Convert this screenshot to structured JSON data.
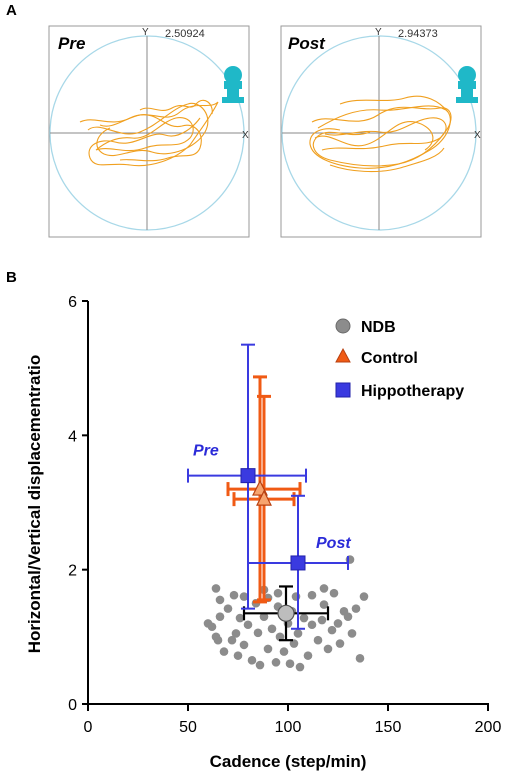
{
  "panel_a": {
    "letter": "A",
    "pre": {
      "label": "Pre",
      "y_axis": "Y",
      "x_axis": "X",
      "value": "2.50924"
    },
    "post": {
      "label": "Post",
      "y_axis": "Y",
      "x_axis": "X",
      "value": "2.94373"
    },
    "trace_color": "#f0a020",
    "circle_color": "#a8d8e8",
    "icon": "rider-icon",
    "icon_color": "#1fb8c8"
  },
  "panel_b": {
    "letter": "B"
  },
  "chart_data": {
    "type": "scatter",
    "title": "",
    "xlabel": "Cadence (step/min)",
    "ylabel": "Horizontal/Vertical  displacementratio",
    "xlim": [
      0,
      200
    ],
    "ylim": [
      0,
      6
    ],
    "xticks": [
      "0",
      "50",
      "100",
      "150",
      "200"
    ],
    "yticks": [
      "0",
      "2",
      "4",
      "6"
    ],
    "legend": {
      "placement": "top-right"
    },
    "series": [
      {
        "name": "NDB",
        "color": "#8c8c8c",
        "marker": "circle",
        "points": [
          {
            "x": 60,
            "y": 1.2
          },
          {
            "x": 62,
            "y": 1.15
          },
          {
            "x": 64,
            "y": 1.0
          },
          {
            "x": 65,
            "y": 0.95
          },
          {
            "x": 66,
            "y": 1.3
          },
          {
            "x": 66,
            "y": 1.55
          },
          {
            "x": 68,
            "y": 0.78
          },
          {
            "x": 70,
            "y": 1.42
          },
          {
            "x": 72,
            "y": 0.95
          },
          {
            "x": 73,
            "y": 1.62
          },
          {
            "x": 74,
            "y": 1.05
          },
          {
            "x": 75,
            "y": 0.72
          },
          {
            "x": 76,
            "y": 1.28
          },
          {
            "x": 78,
            "y": 0.88
          },
          {
            "x": 78,
            "y": 1.6
          },
          {
            "x": 80,
            "y": 1.18
          },
          {
            "x": 82,
            "y": 0.65
          },
          {
            "x": 84,
            "y": 1.5
          },
          {
            "x": 85,
            "y": 1.06
          },
          {
            "x": 86,
            "y": 0.58
          },
          {
            "x": 88,
            "y": 1.3
          },
          {
            "x": 90,
            "y": 0.82
          },
          {
            "x": 90,
            "y": 1.58
          },
          {
            "x": 92,
            "y": 1.12
          },
          {
            "x": 94,
            "y": 0.62
          },
          {
            "x": 95,
            "y": 1.45
          },
          {
            "x": 96,
            "y": 1.0
          },
          {
            "x": 98,
            "y": 0.78
          },
          {
            "x": 100,
            "y": 1.2
          },
          {
            "x": 101,
            "y": 0.6
          },
          {
            "x": 102,
            "y": 1.38
          },
          {
            "x": 103,
            "y": 0.9
          },
          {
            "x": 104,
            "y": 1.6
          },
          {
            "x": 105,
            "y": 1.05
          },
          {
            "x": 106,
            "y": 0.55
          },
          {
            "x": 108,
            "y": 1.28
          },
          {
            "x": 110,
            "y": 0.72
          },
          {
            "x": 112,
            "y": 1.62
          },
          {
            "x": 115,
            "y": 0.95
          },
          {
            "x": 117,
            "y": 1.25
          },
          {
            "x": 118,
            "y": 1.48
          },
          {
            "x": 120,
            "y": 0.82
          },
          {
            "x": 122,
            "y": 1.1
          },
          {
            "x": 123,
            "y": 1.65
          },
          {
            "x": 125,
            "y": 1.2
          },
          {
            "x": 126,
            "y": 0.9
          },
          {
            "x": 128,
            "y": 1.38
          },
          {
            "x": 130,
            "y": 1.3
          },
          {
            "x": 131,
            "y": 2.15
          },
          {
            "x": 132,
            "y": 1.05
          },
          {
            "x": 134,
            "y": 1.42
          },
          {
            "x": 136,
            "y": 0.68
          },
          {
            "x": 138,
            "y": 1.6
          },
          {
            "x": 64,
            "y": 1.72
          },
          {
            "x": 88,
            "y": 1.7
          },
          {
            "x": 118,
            "y": 1.72
          },
          {
            "x": 95,
            "y": 1.65
          },
          {
            "x": 112,
            "y": 1.18
          }
        ]
      },
      {
        "name": "",
        "color": "#8c8c8c",
        "marker": "circle-large",
        "points": [
          {
            "x": 99,
            "y": 1.35,
            "xerr": [
              78,
              120
            ],
            "yerr": [
              0.95,
              1.75
            ]
          }
        ]
      },
      {
        "name": "Control",
        "color": "#f05a14",
        "marker": "triangle",
        "points": [
          {
            "x": 86,
            "y": 3.2,
            "xerr": [
              70,
              106
            ],
            "yerr": [
              1.52,
              4.87
            ]
          },
          {
            "x": 88,
            "y": 3.05,
            "xerr": [
              73,
              103
            ],
            "yerr": [
              1.55,
              4.58
            ]
          }
        ]
      },
      {
        "name": "Hippotherapy",
        "color": "#3a3ae0",
        "marker": "square",
        "points": [
          {
            "x": 80,
            "y": 3.4,
            "xerr": [
              50,
              109
            ],
            "yerr": [
              1.42,
              5.35
            ],
            "label": "Pre"
          },
          {
            "x": 105,
            "y": 2.1,
            "xerr": [
              80,
              130
            ],
            "yerr": [
              1.12,
              3.1
            ],
            "label": "Post"
          }
        ]
      }
    ]
  }
}
